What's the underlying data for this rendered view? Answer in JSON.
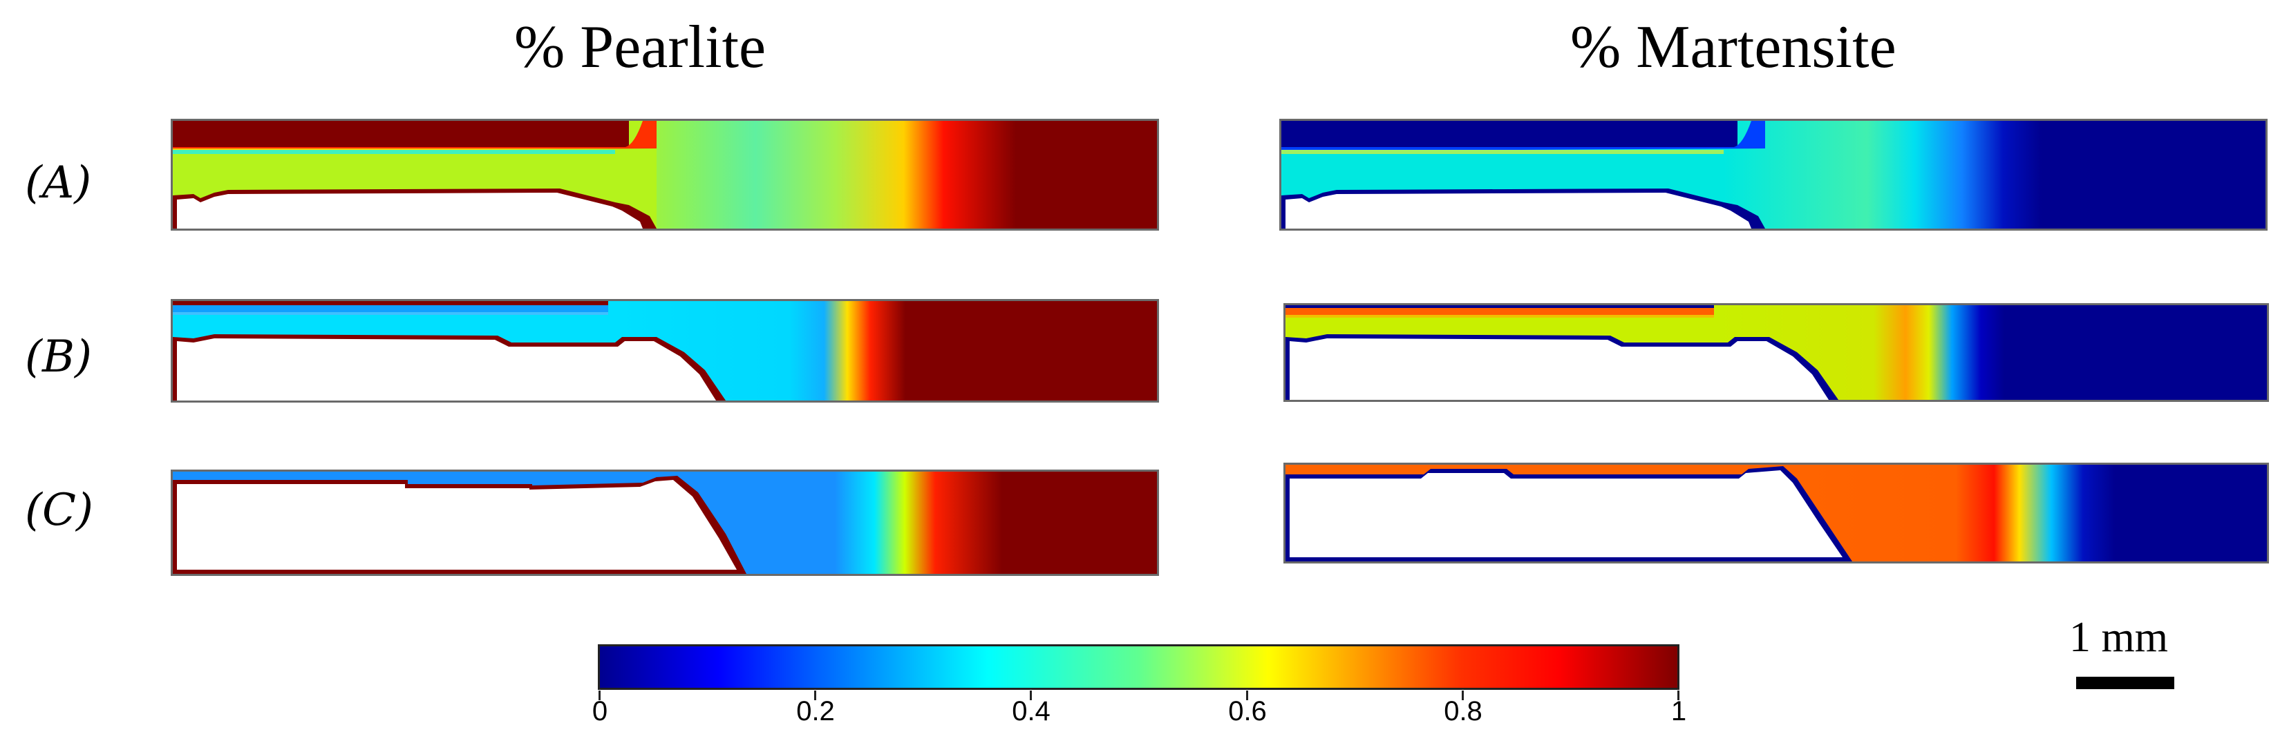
{
  "titles": {
    "left": "% Pearlite",
    "right": "% Martensite"
  },
  "rows": [
    "(A)",
    "(B)",
    "(C)"
  ],
  "colorbar": {
    "ticks": [
      "0",
      "0.2",
      "0.4",
      "0.6",
      "0.8",
      "1"
    ],
    "colormap": "jet"
  },
  "scale_bar": {
    "label": "1 mm"
  },
  "panels": {
    "pearlite": [
      {
        "row": "A",
        "deposit_value": 0.56,
        "substrate_value": 1.0
      },
      {
        "row": "B",
        "deposit_value": 0.4,
        "substrate_value": 1.0
      },
      {
        "row": "C",
        "deposit_value": 0.22,
        "substrate_value": 1.0
      }
    ],
    "martensite": [
      {
        "row": "A",
        "deposit_value": 0.44,
        "substrate_value": 0.0
      },
      {
        "row": "B",
        "deposit_value": 0.6,
        "substrate_value": 0.0
      },
      {
        "row": "C",
        "deposit_value": 0.78,
        "substrate_value": 0.0
      }
    ]
  },
  "colors": {
    "jet_0": "#00008f",
    "jet_0.2": "#0060ff",
    "jet_0.4": "#00e0ff",
    "jet_0.6": "#c8ff00",
    "jet_0.8": "#ff6400",
    "jet_1": "#800000"
  }
}
